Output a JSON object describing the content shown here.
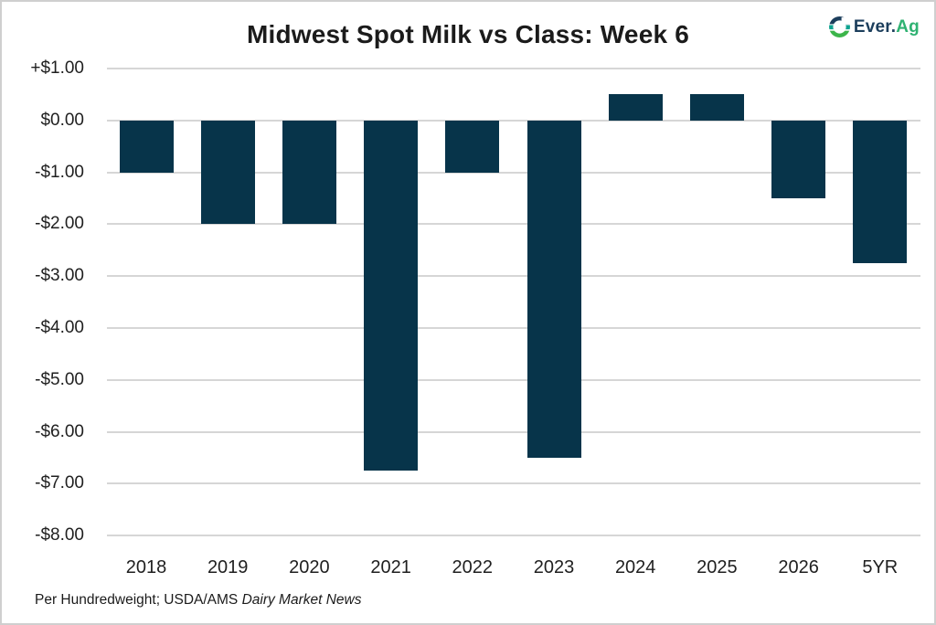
{
  "header": {
    "title": "Midwest Spot Milk vs Class: Week 6",
    "logo": {
      "text_primary": "Ever.",
      "text_accent": "Ag",
      "navy": "#1c3e5c",
      "green": "#2fb272"
    }
  },
  "chart_data": {
    "type": "bar",
    "title": "Midwest Spot Milk vs Class: Week 6",
    "categories": [
      "2018",
      "2019",
      "2020",
      "2021",
      "2022",
      "2023",
      "2024",
      "2025",
      "2026",
      "5YR"
    ],
    "values": [
      -1.0,
      -2.0,
      -2.0,
      -6.75,
      -1.0,
      -6.5,
      0.5,
      0.5,
      -1.5,
      -2.75
    ],
    "bar_color": "#07344a",
    "gridline_color": "#d6d6d6",
    "grid": true,
    "legend_position": "none",
    "xlabel": "",
    "ylabel": "",
    "ylim": [
      -8.75,
      1.0
    ],
    "ytick_values": [
      1,
      0,
      -1,
      -2,
      -3,
      -4,
      -5,
      -6,
      -7,
      -8
    ],
    "ytick_labels": [
      "+$1.00",
      "$0.00",
      "-$1.00",
      "-$2.00",
      "-$3.00",
      "-$4.00",
      "-$5.00",
      "-$6.00",
      "-$7.00",
      "-$8.00"
    ]
  },
  "footnote": {
    "plain": "Per Hundredweight; USDA/AMS ",
    "italic": "Dairy Market News"
  }
}
